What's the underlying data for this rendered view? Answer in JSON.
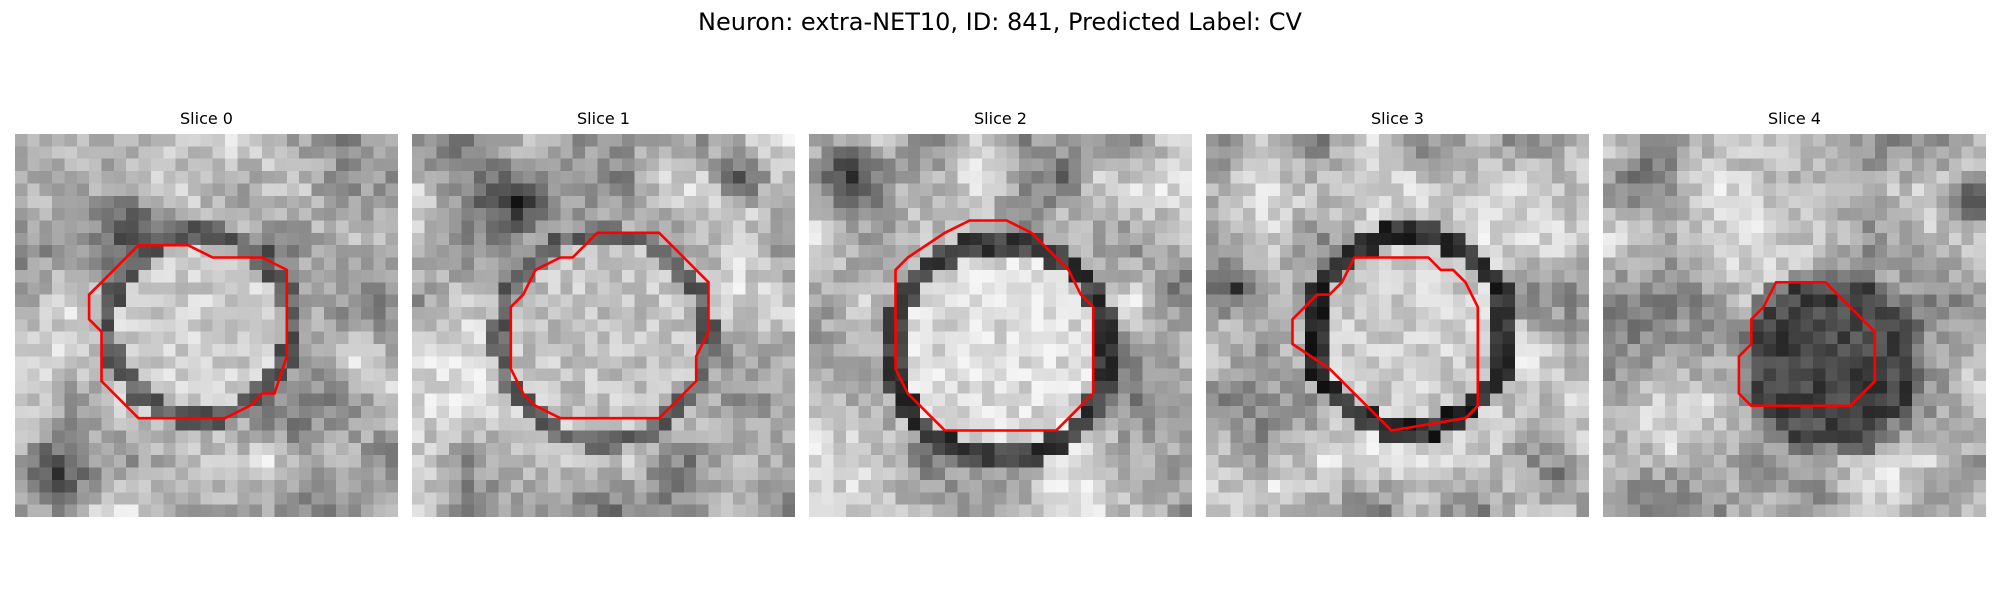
{
  "figure": {
    "title": "Neuron: extra-NET10, ID: 841, Predicted Label: CV"
  },
  "overlay_color": "#ff0000",
  "panels": [
    {
      "title": "Slice 0"
    },
    {
      "title": "Slice 1"
    },
    {
      "title": "Slice 2"
    },
    {
      "title": "Slice 3"
    },
    {
      "title": "Slice 4"
    }
  ]
}
